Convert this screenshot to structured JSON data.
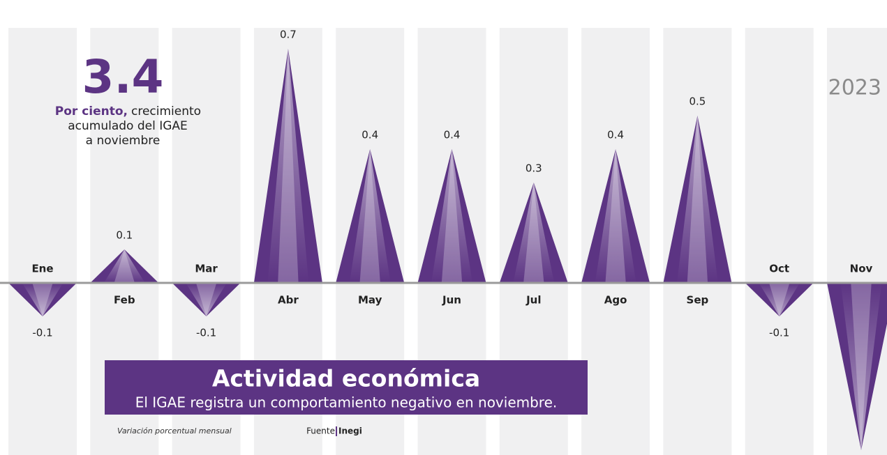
{
  "chart_data": {
    "type": "bar",
    "title": "Actividad económica",
    "subtitle": "El IGAE registra un comportamiento negativo en noviembre.",
    "year": "2023",
    "highlight": {
      "value": 3.4,
      "lead": "Por ciento,",
      "lines": [
        "crecimiento",
        "acumulado del IGAE",
        "a noviembre"
      ]
    },
    "note": "Variación porcentual mensual",
    "source_label": "Fuente",
    "source": "Inegi",
    "categories": [
      "Ene",
      "Feb",
      "Mar",
      "Abr",
      "May",
      "Jun",
      "Jul",
      "Ago",
      "Sep",
      "Oct",
      "Nov"
    ],
    "values": [
      -0.1,
      0.1,
      -0.1,
      0.7,
      0.4,
      0.4,
      0.3,
      0.4,
      0.5,
      -0.1,
      -0.5
    ],
    "color": "#5c3483"
  }
}
